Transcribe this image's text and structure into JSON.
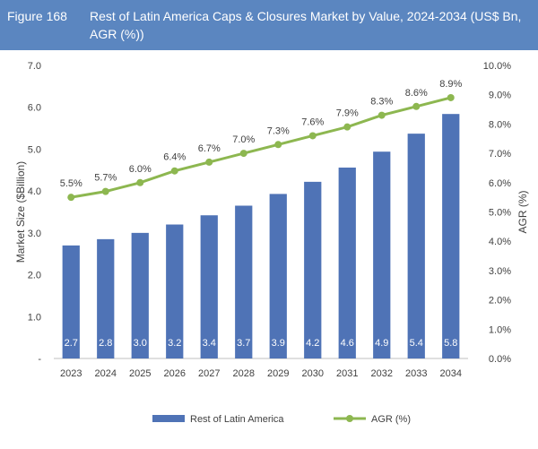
{
  "header": {
    "figure_number": "Figure 168",
    "title": "Rest of Latin America Caps & Closures Market by Value, 2024-2034 (US$ Bn, AGR (%))"
  },
  "colors": {
    "header_bg": "#5b86c0",
    "bar": "#4f73b6",
    "line": "#8db750",
    "grid": "#d9d9d9"
  },
  "chart_data": {
    "type": "bar",
    "categories": [
      "2023",
      "2024",
      "2025",
      "2026",
      "2027",
      "2028",
      "2029",
      "2030",
      "2031",
      "2032",
      "2033",
      "2034"
    ],
    "series": [
      {
        "name": "Rest of Latin America",
        "type": "bar",
        "axis": "left",
        "values": [
          2.7,
          2.85,
          3.0,
          3.2,
          3.42,
          3.65,
          3.93,
          4.22,
          4.56,
          4.94,
          5.37,
          5.84
        ],
        "labels": [
          "2.7",
          "2.8",
          "3.0",
          "3.2",
          "3.4",
          "3.7",
          "3.9",
          "4.2",
          "4.6",
          "4.9",
          "5.4",
          "5.8"
        ]
      },
      {
        "name": "AGR (%)",
        "type": "line",
        "axis": "right",
        "values": [
          5.5,
          5.7,
          6.0,
          6.4,
          6.7,
          7.0,
          7.3,
          7.6,
          7.9,
          8.3,
          8.6,
          8.9
        ],
        "labels": [
          "5.5%",
          "5.7%",
          "6.0%",
          "6.4%",
          "6.7%",
          "7.0%",
          "7.3%",
          "7.6%",
          "7.9%",
          "8.3%",
          "8.6%",
          "8.9%"
        ]
      }
    ],
    "ylabel": "Market Size ($Billion)",
    "y2label": "AGR (%)",
    "ylim": [
      0,
      7
    ],
    "y2lim": [
      0,
      10
    ],
    "yticks": [
      "-",
      "1.0",
      "2.0",
      "3.0",
      "4.0",
      "5.0",
      "6.0",
      "7.0"
    ],
    "y2ticks": [
      "0.0%",
      "1.0%",
      "2.0%",
      "3.0%",
      "4.0%",
      "5.0%",
      "6.0%",
      "7.0%",
      "8.0%",
      "9.0%",
      "10.0%"
    ],
    "grid": false,
    "legend_position": "bottom"
  }
}
